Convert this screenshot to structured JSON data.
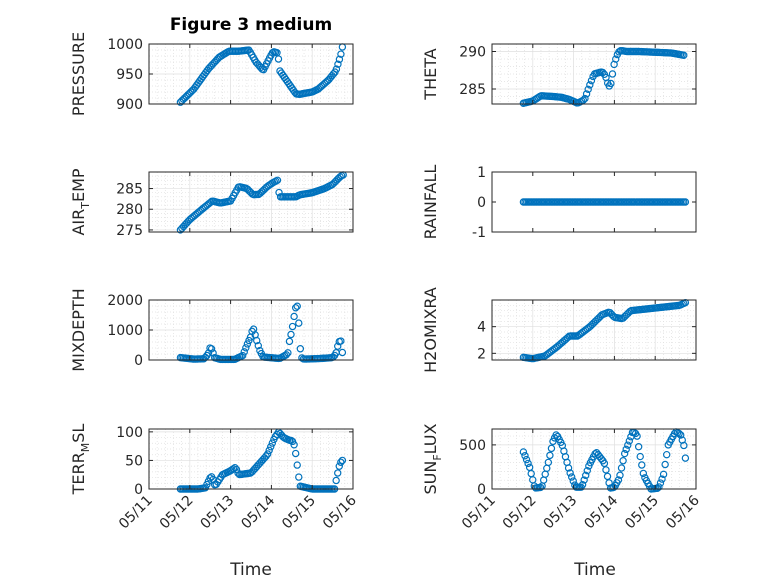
{
  "title": "Figure 3 medium",
  "colors": {
    "marker": "#0072BD",
    "axis": "#262626",
    "grid": "#dfdfdf"
  },
  "chart_data": [
    {
      "type": "scatter",
      "ylabel": "PRESSURE",
      "ylim": [
        900,
        1000
      ],
      "yticks": [
        {
          "v": 900,
          "t": "900"
        },
        {
          "v": 950,
          "t": "950"
        },
        {
          "v": 1000,
          "t": "1000"
        }
      ],
      "xlim": [
        0,
        5
      ],
      "grid": true,
      "x_keys": [
        0.77,
        1.1,
        1.45,
        1.72,
        1.96,
        2.2,
        2.45,
        2.62,
        2.8,
        2.92,
        3.02,
        3.06,
        3.16,
        3.2,
        3.6,
        3.7,
        3.75,
        4.0,
        4.15,
        4.4,
        4.58,
        4.67,
        4.72,
        4.74
      ],
      "y_keys": [
        903,
        925,
        958,
        978,
        988,
        988,
        990,
        970,
        956,
        972,
        985,
        987,
        985,
        956,
        917,
        916,
        917,
        920,
        925,
        940,
        955,
        975,
        987,
        995
      ],
      "n": 110
    },
    {
      "type": "scatter",
      "ylabel": "THETA",
      "ylim": [
        283,
        291
      ],
      "yticks": [
        {
          "v": 285,
          "t": "285"
        },
        {
          "v": 290,
          "t": "290"
        }
      ],
      "xlim": [
        0,
        5
      ],
      "grid": true,
      "x_keys": [
        0.77,
        1.0,
        1.2,
        1.5,
        1.7,
        1.9,
        2.1,
        2.27,
        2.38,
        2.5,
        2.7,
        2.78,
        2.85,
        2.9,
        3.0,
        3.08,
        3.13,
        3.2,
        3.3,
        3.6,
        4.0,
        4.4,
        4.7
      ],
      "y_keys": [
        283.1,
        283.4,
        284.1,
        284.0,
        283.9,
        283.6,
        283.1,
        283.6,
        285.3,
        287.0,
        287.3,
        286.8,
        285.5,
        285.3,
        288.5,
        289.7,
        290.1,
        290.1,
        290.0,
        290.0,
        289.9,
        289.8,
        289.5
      ],
      "n": 100
    },
    {
      "type": "scatter",
      "ylabel": "AIR_TEMP",
      "ylabel_main": "AIR",
      "ylabel_sub": "T",
      "ylabel_rest": "EMP",
      "ylim": [
        274.5,
        289
      ],
      "yticks": [
        {
          "v": 275,
          "t": "275"
        },
        {
          "v": 280,
          "t": "280"
        },
        {
          "v": 285,
          "t": "285"
        }
      ],
      "xlim": [
        0,
        5
      ],
      "grid": true,
      "x_keys": [
        0.77,
        1.0,
        1.3,
        1.55,
        1.75,
        2.0,
        2.2,
        2.4,
        2.55,
        2.7,
        2.9,
        3.05,
        3.15,
        3.2,
        3.6,
        3.7,
        4.0,
        4.3,
        4.5,
        4.7,
        4.76
      ],
      "y_keys": [
        275.0,
        277.5,
        280.0,
        282.0,
        281.5,
        282.0,
        285.5,
        285.0,
        283.5,
        283.6,
        285.5,
        286.5,
        287.0,
        283.0,
        283.0,
        283.5,
        284.0,
        285.0,
        286.0,
        288.0,
        288.3
      ],
      "n": 105
    },
    {
      "type": "scatter",
      "ylabel": "RAINFALL",
      "ylim": [
        -1,
        1
      ],
      "yticks": [
        {
          "v": -1,
          "t": "-1"
        },
        {
          "v": 0,
          "t": "0"
        },
        {
          "v": 1,
          "t": "1"
        }
      ],
      "xlim": [
        0,
        5
      ],
      "grid": false,
      "x_keys": [
        0.77,
        4.74
      ],
      "y_keys": [
        0,
        0
      ],
      "n": 100
    },
    {
      "type": "scatter",
      "ylabel": "MIXDEPTH",
      "ylim": [
        0,
        2000
      ],
      "yticks": [
        {
          "v": 0,
          "t": "0"
        },
        {
          "v": 1000,
          "t": "1000"
        },
        {
          "v": 2000,
          "t": "2000"
        }
      ],
      "xlim": [
        0,
        5
      ],
      "grid": true,
      "x_keys": [
        0.77,
        1.1,
        1.35,
        1.45,
        1.5,
        1.55,
        1.6,
        1.75,
        2.1,
        2.3,
        2.4,
        2.5,
        2.55,
        2.65,
        2.72,
        2.8,
        3.2,
        3.4,
        3.45,
        3.5,
        3.55,
        3.6,
        3.65,
        3.7,
        3.75,
        3.8,
        4.2,
        4.5,
        4.58,
        4.65,
        4.7,
        4.74
      ],
      "y_keys": [
        80,
        30,
        40,
        200,
        420,
        350,
        80,
        20,
        20,
        150,
        500,
        800,
        1100,
        600,
        300,
        100,
        50,
        200,
        700,
        950,
        1400,
        1780,
        1800,
        450,
        50,
        30,
        50,
        80,
        200,
        600,
        650,
        250
      ],
      "n": 105
    },
    {
      "type": "scatter",
      "ylabel": "H2OMIXRA",
      "ylim": [
        1.5,
        6
      ],
      "yticks": [
        {
          "v": 2,
          "t": "2"
        },
        {
          "v": 4,
          "t": "4"
        }
      ],
      "xlim": [
        0,
        5
      ],
      "grid": true,
      "x_keys": [
        0.77,
        1.0,
        1.3,
        1.6,
        1.9,
        2.1,
        2.4,
        2.7,
        2.88,
        3.0,
        3.2,
        3.4,
        3.7,
        4.0,
        4.3,
        4.6,
        4.74
      ],
      "y_keys": [
        1.7,
        1.6,
        1.8,
        2.5,
        3.3,
        3.3,
        4.0,
        4.9,
        5.1,
        4.7,
        4.6,
        5.2,
        5.3,
        5.4,
        5.5,
        5.6,
        5.8
      ],
      "n": 100
    },
    {
      "type": "scatter",
      "ylabel": "TERR_MSL",
      "ylabel_main": "TERR",
      "ylabel_sub": "M",
      "ylabel_rest": "SL",
      "ylim": [
        0,
        105
      ],
      "yticks": [
        {
          "v": 0,
          "t": "0"
        },
        {
          "v": 50,
          "t": "50"
        },
        {
          "v": 100,
          "t": "100"
        }
      ],
      "xlim": [
        0,
        5
      ],
      "grid": true,
      "x_keys": [
        0.77,
        1.2,
        1.38,
        1.5,
        1.55,
        1.62,
        1.8,
        2.0,
        2.12,
        2.2,
        2.5,
        2.9,
        3.08,
        3.18,
        3.3,
        3.45,
        3.5,
        3.55,
        3.6,
        3.7,
        4.0,
        4.2,
        4.55,
        4.6,
        4.68,
        4.74
      ],
      "y_keys": [
        0,
        0,
        2,
        20,
        22,
        5,
        25,
        32,
        38,
        25,
        28,
        60,
        90,
        100,
        90,
        85,
        85,
        80,
        60,
        5,
        0,
        0,
        0,
        20,
        45,
        50
      ],
      "n": 105
    },
    {
      "type": "scatter",
      "ylabel": "SUN_FLUX",
      "ylabel_main": "SUN",
      "ylabel_sub": "F",
      "ylabel_rest": "LUX",
      "ylim": [
        0,
        680
      ],
      "yticks": [
        {
          "v": 0,
          "t": "0"
        },
        {
          "v": 500,
          "t": "500"
        }
      ],
      "xlim": [
        0,
        5
      ],
      "grid": true,
      "x_keys": [
        0.77,
        0.92,
        1.05,
        1.22,
        1.38,
        1.5,
        1.58,
        1.72,
        1.9,
        2.05,
        2.2,
        2.38,
        2.55,
        2.75,
        2.9,
        3.0,
        3.12,
        3.25,
        3.45,
        3.55,
        3.62,
        3.72,
        3.9,
        4.08,
        4.2,
        4.32,
        4.5,
        4.62,
        4.7,
        4.74
      ],
      "y_keys": [
        420,
        250,
        10,
        20,
        300,
        550,
        620,
        500,
        200,
        20,
        20,
        270,
        420,
        300,
        10,
        20,
        120,
        400,
        650,
        620,
        400,
        150,
        0,
        10,
        150,
        500,
        650,
        620,
        500,
        350
      ],
      "n": 105
    }
  ],
  "xticks": [
    "05/11",
    "05/12",
    "05/13",
    "05/14",
    "05/15",
    "05/16"
  ],
  "xlabel": "Time"
}
